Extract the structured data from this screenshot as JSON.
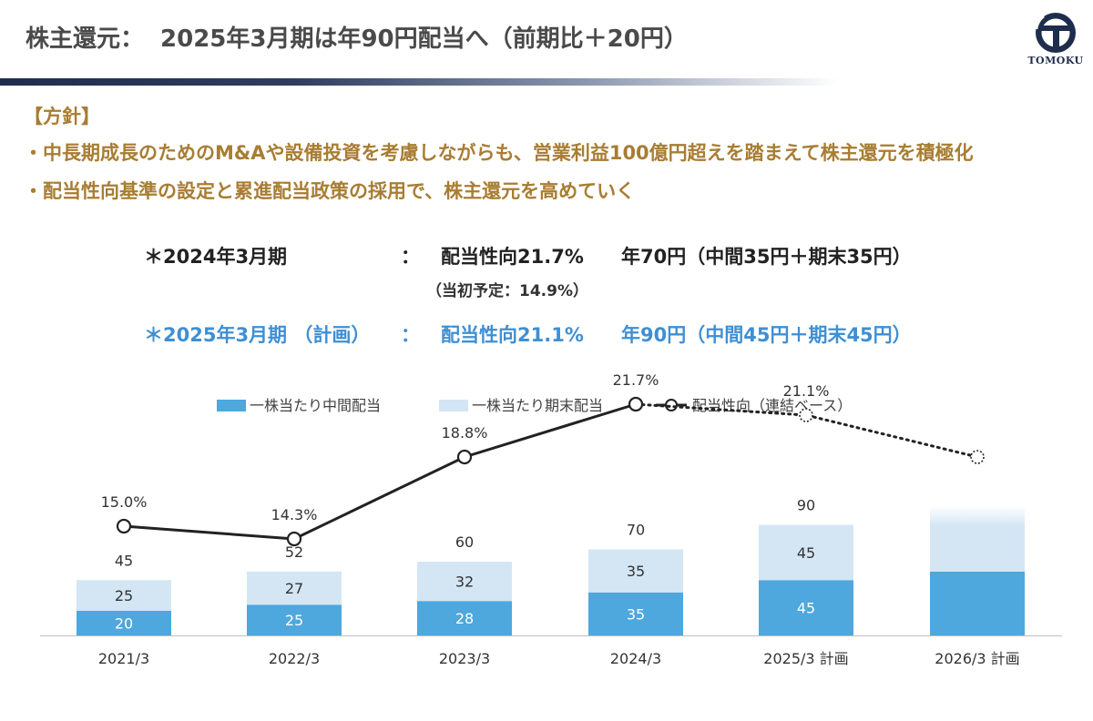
{
  "header": {
    "title_left": "株主還元：",
    "title_right": "2025年3月期は年90円配当へ（前期比＋20円）",
    "logo_text": "TOMOKU"
  },
  "policy": {
    "heading": "【方針】",
    "bullets": [
      "・中長期成長のためのM&Aや設備投資を考慮しながらも、営業利益100億円超えを踏まえて株主還元を積極化",
      "・配当性向基準の設定と累進配当政策の採用で、株主還元を高めていく"
    ]
  },
  "summary": {
    "row1": {
      "period": "＊2024年3月期",
      "colon": "：",
      "payout": "配当性向21.7%",
      "dividend": "年70円（中間35円＋期末35円）",
      "note": "（当初予定：14.9%）"
    },
    "row2": {
      "period": "＊2025年3月期 （計画）",
      "colon": "：",
      "payout": "配当性向21.1%",
      "dividend": "年90円（中間45円＋期末45円）"
    }
  },
  "colors": {
    "interim": "#4ea7dd",
    "year_end": "#d4e6f4",
    "line": "#222222",
    "policy_text": "#a87d32",
    "plan_text": "#3f8fd3",
    "navy": "#1f2d4d"
  },
  "chart_data": {
    "type": "bar",
    "stacked": true,
    "categories": [
      "2021/3",
      "2022/3",
      "2023/3",
      "2024/3",
      "2025/3 計画",
      "2026/3 計画"
    ],
    "series": [
      {
        "name": "一株当たり中間配当",
        "values": [
          20,
          25,
          28,
          35,
          45,
          null
        ],
        "labels": [
          "20",
          "25",
          "28",
          "35",
          "45",
          ""
        ]
      },
      {
        "name": "一株当たり期末配当",
        "values": [
          25,
          27,
          32,
          35,
          45,
          null
        ],
        "labels": [
          "25",
          "27",
          "32",
          "35",
          "45",
          ""
        ]
      }
    ],
    "totals": [
      45,
      52,
      60,
      70,
      90,
      null
    ],
    "total_labels": [
      "45",
      "52",
      "60",
      "70",
      "90",
      ""
    ],
    "line_series": {
      "name": "配当性向（連結ベース）",
      "values": [
        15.0,
        14.3,
        18.8,
        21.7,
        21.1,
        null
      ],
      "labels": [
        "15.0%",
        "14.3%",
        "18.8%",
        "21.7%",
        "21.1%",
        ""
      ],
      "dotted_from_index": 3
    },
    "note": "2026/3 計画: bar height and payout point shown without values (gradient bar, dotted marker)",
    "legend": [
      "一株当たり中間配当",
      "一株当たり期末配当",
      "配当性向（連結ベース）"
    ],
    "legend_position": "top",
    "grid": false
  }
}
